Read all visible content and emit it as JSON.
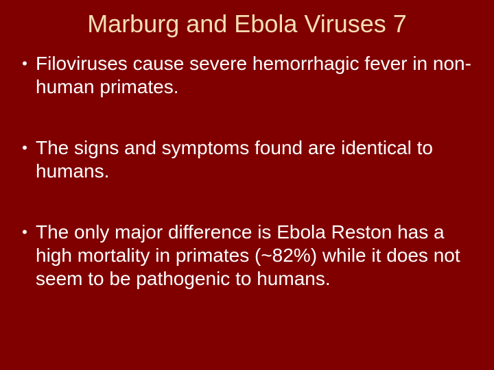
{
  "slide": {
    "title": "Marburg and Ebola Viruses 7",
    "background_color": "#800000",
    "title_color": "#f5deb3",
    "text_color": "#ffffff",
    "title_fontsize": 36,
    "body_fontsize": 28,
    "bullets": [
      {
        "text": "Filoviruses cause severe hemorrhagic fever in non-human primates."
      },
      {
        "text": "The signs and symptoms found are identical to humans."
      },
      {
        "text": "The only major difference is Ebola Reston has a high mortality in primates (~82%) while it does not seem to be pathogenic to humans."
      }
    ]
  }
}
